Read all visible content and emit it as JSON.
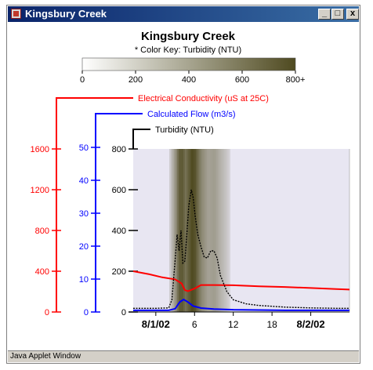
{
  "window": {
    "title": "Kingsbury Creek",
    "status": "Java Applet Window",
    "min_glyph": "_",
    "max_glyph": "□",
    "close_glyph": "x"
  },
  "colors": {
    "conductivity": "#ff0000",
    "flow": "#0000ff",
    "turbidity": "#000000",
    "colorkey_low": "#ffffff",
    "colorkey_high": "#4f4a20"
  },
  "chart_data": {
    "type": "line",
    "title": "Kingsbury Creek",
    "subtitle": "* Color Key: Turbidity (NTU)",
    "color_key": {
      "ticks": [
        "0",
        "200",
        "400",
        "600",
        "800+"
      ],
      "range": [
        0,
        800
      ]
    },
    "x_ticks": [
      {
        "label": "8/1/02",
        "x": 0,
        "bold": true
      },
      {
        "label": "6",
        "x": 6,
        "bold": false
      },
      {
        "label": "12",
        "x": 12,
        "bold": false
      },
      {
        "label": "18",
        "x": 18,
        "bold": false
      },
      {
        "label": "8/2/02",
        "x": 24,
        "bold": true
      }
    ],
    "x_range": [
      -3.5,
      30
    ],
    "series": [
      {
        "name": "Electrical Conductivity (uS at 25C)",
        "axis_ticks": [
          "0",
          "400",
          "800",
          "1200",
          "1600"
        ],
        "ylim": [
          0,
          1600
        ],
        "x": [
          -3.5,
          -1,
          1,
          3,
          4,
          4.5,
          5,
          6,
          7,
          9,
          12,
          16,
          20,
          24,
          28,
          30
        ],
        "values": [
          400,
          370,
          340,
          320,
          280,
          215,
          205,
          230,
          265,
          265,
          262,
          252,
          245,
          235,
          225,
          220
        ]
      },
      {
        "name": "Calculated Flow (m3/s)",
        "axis_ticks": [
          "0",
          "10",
          "20",
          "30",
          "40",
          "50"
        ],
        "ylim": [
          0,
          60
        ],
        "x": [
          -3.5,
          2,
          3,
          3.7,
          4.3,
          5,
          5.8,
          7,
          9,
          12,
          16,
          20,
          24,
          30
        ],
        "values": [
          0.5,
          0.5,
          1,
          3,
          3.8,
          3,
          1.8,
          1.2,
          0.9,
          0.7,
          0.6,
          0.5,
          0.5,
          0.5
        ]
      },
      {
        "name": "Turbidity (NTU)",
        "axis_ticks": [
          "0",
          "200",
          "400",
          "600",
          "800"
        ],
        "ylim": [
          0,
          800
        ],
        "x": [
          -3.5,
          0,
          2,
          2.5,
          3,
          3.3,
          3.6,
          3.9,
          4.2,
          4.5,
          4.8,
          5.1,
          5.5,
          5.8,
          6.1,
          6.5,
          7,
          7.5,
          8,
          8.5,
          9,
          9.5,
          10,
          11,
          12,
          14,
          16,
          18,
          20,
          24,
          28,
          30
        ],
        "values": [
          18,
          18,
          20,
          60,
          260,
          380,
          300,
          400,
          240,
          250,
          380,
          520,
          600,
          560,
          470,
          380,
          320,
          270,
          265,
          300,
          300,
          265,
          180,
          100,
          60,
          40,
          32,
          28,
          24,
          20,
          18,
          18
        ]
      }
    ],
    "turbidity_band": {
      "x": [
        2,
        3,
        3.5,
        4,
        4.5,
        5,
        5.5,
        6,
        6.5,
        7,
        8,
        9,
        10,
        11,
        11.5
      ],
      "values": [
        100,
        450,
        700,
        720,
        600,
        700,
        800,
        750,
        600,
        480,
        350,
        380,
        260,
        150,
        60
      ]
    }
  }
}
